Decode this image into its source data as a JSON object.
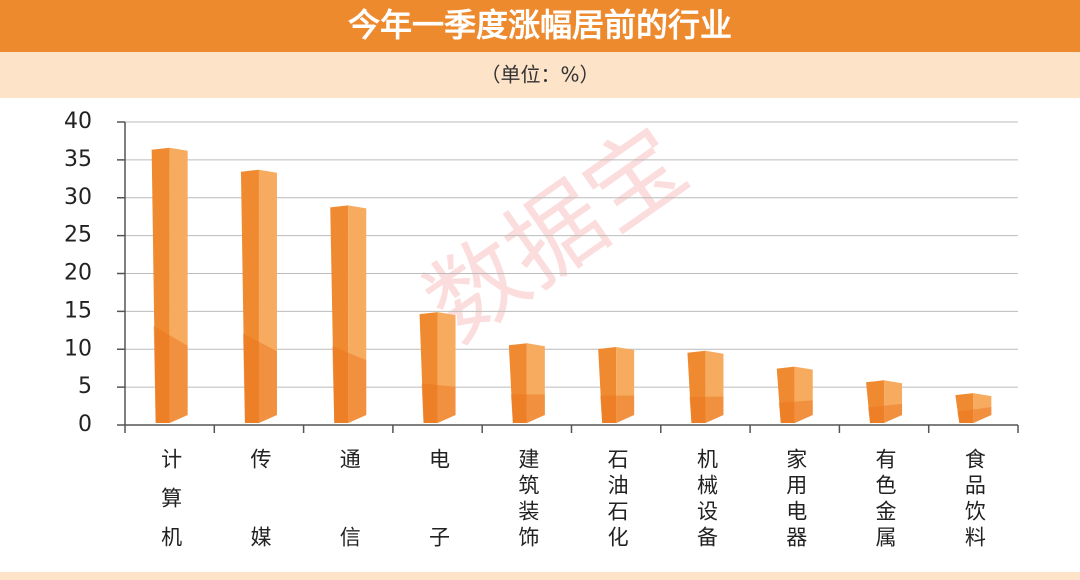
{
  "chart_data": {
    "type": "bar",
    "title": "今年一季度涨幅居前的行业",
    "subtitle": "（单位：%）",
    "watermark": "数据宝",
    "categories": [
      "计算机",
      "传媒",
      "通信",
      "电子",
      "建筑装饰",
      "石油石化",
      "机械设备",
      "家用电器",
      "有色金属",
      "食品饮料"
    ],
    "values": [
      36.6,
      33.7,
      29.0,
      14.9,
      10.8,
      10.3,
      9.8,
      7.7,
      5.9,
      4.2
    ],
    "color": "#f08a30",
    "ylim": [
      0,
      40
    ],
    "yticks": [
      0,
      5,
      10,
      15,
      20,
      25,
      30,
      35,
      40
    ],
    "grid": true
  }
}
